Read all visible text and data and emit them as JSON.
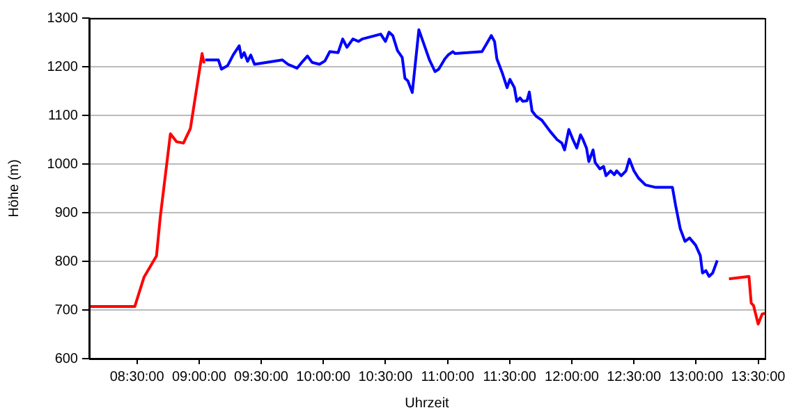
{
  "chart_data": {
    "type": "line",
    "xlabel": "Uhrzeit",
    "ylabel": "Höhe (m)",
    "xlim": [
      8.115,
      13.553
    ],
    "ylim": [
      600,
      1300
    ],
    "xticks": [
      {
        "value": 8.5,
        "label": "08:30:00"
      },
      {
        "value": 9,
        "label": "09:00:00"
      },
      {
        "value": 9.5,
        "label": "09:30:00"
      },
      {
        "value": 10,
        "label": "10:00:00"
      },
      {
        "value": 10.5,
        "label": "10:30:00"
      },
      {
        "value": 11,
        "label": "11:00:00"
      },
      {
        "value": 11.5,
        "label": "11:30:00"
      },
      {
        "value": 12,
        "label": "12:00:00"
      },
      {
        "value": 12.5,
        "label": "12:30:00"
      },
      {
        "value": 13,
        "label": "13:00:00"
      },
      {
        "value": 13.5,
        "label": "13:30:00"
      }
    ],
    "yticks": [
      600,
      700,
      800,
      900,
      1000,
      1100,
      1200,
      1300
    ],
    "grid": "y",
    "legend": false,
    "marker": "none",
    "line_style": "solid",
    "series": [
      {
        "color": "#ff0000",
        "x": [
          8.115,
          8.482,
          8.556,
          8.657,
          8.687,
          8.769,
          8.818,
          8.874,
          8.93,
          9.024,
          9.04
        ],
        "values": [
          707,
          707,
          767,
          811,
          890,
          1062,
          1046,
          1043,
          1073,
          1227,
          1207
        ]
      },
      {
        "color": "#0000ff",
        "x": [
          9.049,
          9.155,
          9.18,
          9.229,
          9.274,
          9.323,
          9.341,
          9.363,
          9.39,
          9.416,
          9.446,
          9.67,
          9.715,
          9.789,
          9.827,
          9.872,
          9.909,
          9.969,
          10.013,
          10.052,
          10.119,
          10.156,
          10.19,
          10.238,
          10.283,
          10.313,
          10.462,
          10.5,
          10.529,
          10.559,
          10.597,
          10.635,
          10.657,
          10.68,
          10.716,
          10.769,
          10.854,
          10.899,
          10.929,
          10.978,
          11.004,
          11.042,
          11.061,
          11.277,
          11.314,
          11.352,
          11.378,
          11.397,
          11.442,
          11.479,
          11.502,
          11.538,
          11.557,
          11.583,
          11.605,
          11.639,
          11.658,
          11.68,
          11.714,
          11.759,
          11.826,
          11.882,
          11.92,
          11.942,
          11.976,
          12.006,
          12.04,
          12.07,
          12.087,
          12.118,
          12.137,
          12.171,
          12.188,
          12.226,
          12.256,
          12.275,
          12.312,
          12.342,
          12.361,
          12.398,
          12.436,
          12.463,
          12.5,
          12.537,
          12.593,
          12.675,
          12.81,
          12.836,
          12.873,
          12.911,
          12.948,
          12.997,
          13.034,
          13.052,
          13.079,
          13.105,
          13.134,
          13.171
        ],
        "values": [
          1214,
          1214,
          1195,
          1202,
          1224,
          1243,
          1219,
          1229,
          1211,
          1224,
          1205,
          1214,
          1205,
          1197,
          1209,
          1222,
          1209,
          1205,
          1212,
          1231,
          1229,
          1257,
          1240,
          1257,
          1252,
          1257,
          1267,
          1252,
          1271,
          1264,
          1233,
          1219,
          1176,
          1171,
          1147,
          1276,
          1214,
          1190,
          1195,
          1216,
          1224,
          1231,
          1227,
          1231,
          1247,
          1264,
          1252,
          1216,
          1186,
          1157,
          1174,
          1157,
          1129,
          1136,
          1129,
          1130,
          1148,
          1109,
          1098,
          1090,
          1067,
          1050,
          1043,
          1029,
          1071,
          1052,
          1033,
          1060,
          1052,
          1033,
          1005,
          1029,
          1003,
          990,
          995,
          976,
          986,
          978,
          986,
          976,
          986,
          1010,
          986,
          971,
          957,
          952,
          952,
          914,
          867,
          841,
          848,
          833,
          812,
          776,
          781,
          769,
          776,
          802
        ]
      },
      {
        "color": "#ff0000",
        "x": [
          13.265,
          13.426,
          13.444,
          13.463,
          13.5,
          13.533,
          13.553
        ],
        "values": [
          764,
          769,
          714,
          709,
          671,
          692,
          693
        ]
      }
    ]
  }
}
